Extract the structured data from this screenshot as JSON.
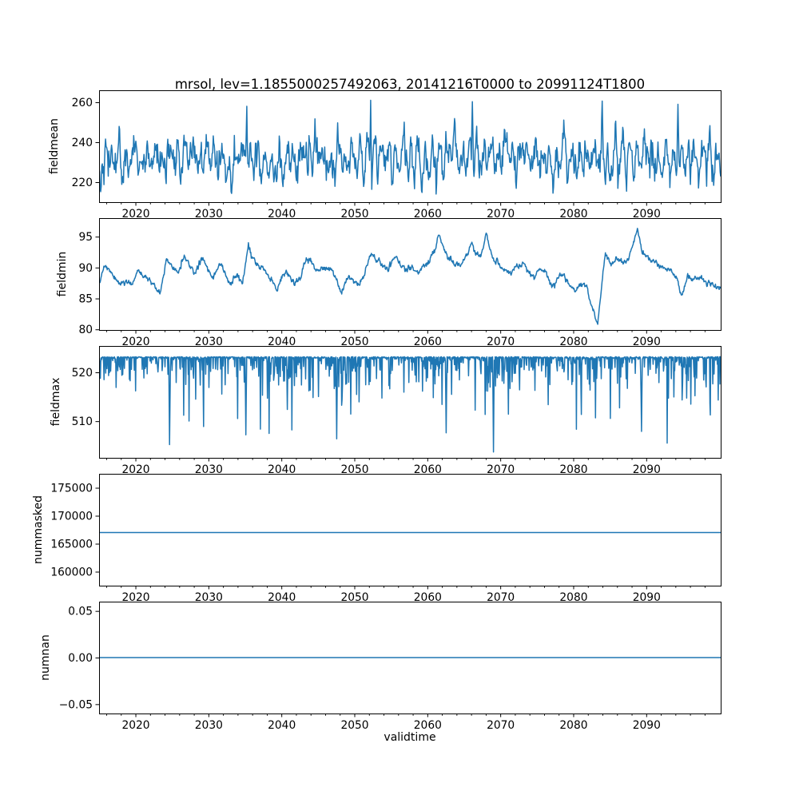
{
  "figure": {
    "background": "#ffffff",
    "text_color": "#000000"
  },
  "chart_data": {
    "type": "line",
    "title": "mrsol, lev=1.1855000257492063, 20141216T0000 to 20991124T1800",
    "xlabel": "validtime",
    "legend": "none",
    "grid": false,
    "line_color": "#1f77b4",
    "x_axis": {
      "xlim": [
        2014.96,
        2100.15
      ],
      "major_ticks": [
        2020,
        2030,
        2040,
        2050,
        2060,
        2070,
        2080,
        2090
      ],
      "major_tick_labels": [
        "2020",
        "2030",
        "2040",
        "2050",
        "2060",
        "2070",
        "2080",
        "2090"
      ],
      "minor_tick_start": 2016,
      "minor_tick_step": 2,
      "minor_tick_end": 2098
    },
    "panels": [
      {
        "ylabel": "fieldmean",
        "ylim": [
          210,
          266
        ],
        "ytick_values": [
          220,
          240,
          260
        ],
        "ytick_labels": [
          "220",
          "240",
          "260"
        ],
        "series": {
          "type": "noisy_seasonal",
          "seed": 42,
          "n": 1150,
          "mean": 231.5,
          "season_amp": 6.0,
          "season_freq": 1.0,
          "season_phase": 0.55,
          "ar": 0.55,
          "sigma": 4.3,
          "clamp": [
            213.5,
            261.0
          ],
          "spikes": [
            [
              2035.2,
              258.0
            ],
            [
              2052.2,
              261.0
            ],
            [
              2066.1,
              260.3
            ],
            [
              2083.9,
              260.6
            ],
            [
              2094.3,
              259.0
            ]
          ]
        }
      },
      {
        "ylabel": "fieldmin",
        "ylim": [
          79.9,
          98.0
        ],
        "ytick_values": [
          80,
          85,
          90,
          95
        ],
        "ytick_labels": [
          "80",
          "85",
          "90",
          "95"
        ],
        "series": {
          "type": "keypoints",
          "seed": 5,
          "n": 1300,
          "ar": 0.5,
          "sigma": 0.22,
          "clamp": [
            80.6,
            96.35
          ],
          "points": [
            [
              2015.0,
              87.8
            ],
            [
              2015.6,
              89.9
            ],
            [
              2016.3,
              89.6
            ],
            [
              2017.2,
              88.0
            ],
            [
              2018.0,
              87.3
            ],
            [
              2018.8,
              87.9
            ],
            [
              2019.5,
              87.0
            ],
            [
              2020.3,
              89.7
            ],
            [
              2021.2,
              88.6
            ],
            [
              2022.0,
              88.0
            ],
            [
              2022.8,
              86.6
            ],
            [
              2023.4,
              85.8
            ],
            [
              2024.2,
              91.6
            ],
            [
              2025.0,
              90.0
            ],
            [
              2025.8,
              89.4
            ],
            [
              2026.6,
              91.9
            ],
            [
              2027.4,
              90.4
            ],
            [
              2028.2,
              89.0
            ],
            [
              2029.0,
              91.4
            ],
            [
              2029.8,
              90.3
            ],
            [
              2030.6,
              88.4
            ],
            [
              2031.4,
              90.4
            ],
            [
              2032.2,
              89.5
            ],
            [
              2033.0,
              87.4
            ],
            [
              2033.8,
              88.7
            ],
            [
              2034.6,
              87.6
            ],
            [
              2035.4,
              93.5
            ],
            [
              2036.2,
              91.0
            ],
            [
              2037.0,
              90.2
            ],
            [
              2037.8,
              89.4
            ],
            [
              2038.6,
              87.8
            ],
            [
              2039.4,
              86.4
            ],
            [
              2040.2,
              89.5
            ],
            [
              2041.0,
              88.6
            ],
            [
              2041.8,
              87.4
            ],
            [
              2042.6,
              88.3
            ],
            [
              2043.4,
              91.6
            ],
            [
              2044.2,
              90.4
            ],
            [
              2045.0,
              89.3
            ],
            [
              2045.8,
              90.0
            ],
            [
              2046.6,
              89.8
            ],
            [
              2047.4,
              88.5
            ],
            [
              2048.2,
              85.6
            ],
            [
              2049.0,
              88.6
            ],
            [
              2049.8,
              87.9
            ],
            [
              2050.6,
              87.3
            ],
            [
              2051.4,
              89.0
            ],
            [
              2052.2,
              92.4
            ],
            [
              2053.0,
              91.2
            ],
            [
              2053.8,
              90.3
            ],
            [
              2054.6,
              89.6
            ],
            [
              2055.4,
              91.8
            ],
            [
              2056.2,
              90.6
            ],
            [
              2057.0,
              89.6
            ],
            [
              2057.8,
              90.2
            ],
            [
              2058.6,
              89.3
            ],
            [
              2059.4,
              90.5
            ],
            [
              2060.2,
              91.0
            ],
            [
              2061.0,
              93.0
            ],
            [
              2061.6,
              95.4
            ],
            [
              2062.2,
              93.2
            ],
            [
              2062.8,
              91.5
            ],
            [
              2063.6,
              90.8
            ],
            [
              2064.4,
              90.2
            ],
            [
              2065.2,
              91.5
            ],
            [
              2065.9,
              93.9
            ],
            [
              2066.5,
              92.4
            ],
            [
              2067.3,
              91.8
            ],
            [
              2068.0,
              95.6
            ],
            [
              2068.5,
              93.0
            ],
            [
              2069.0,
              91.3
            ],
            [
              2069.8,
              90.5
            ],
            [
              2070.6,
              89.4
            ],
            [
              2071.4,
              88.9
            ],
            [
              2072.2,
              90.4
            ],
            [
              2073.0,
              90.8
            ],
            [
              2073.8,
              89.3
            ],
            [
              2074.6,
              88.4
            ],
            [
              2075.4,
              89.8
            ],
            [
              2076.2,
              89.2
            ],
            [
              2077.0,
              87.0
            ],
            [
              2077.8,
              88.3
            ],
            [
              2078.6,
              88.8
            ],
            [
              2079.4,
              87.2
            ],
            [
              2080.2,
              86.0
            ],
            [
              2081.0,
              87.6
            ],
            [
              2081.8,
              86.9
            ],
            [
              2082.4,
              84.0
            ],
            [
              2083.3,
              80.7
            ],
            [
              2084.3,
              92.1
            ],
            [
              2085.1,
              90.6
            ],
            [
              2085.9,
              91.6
            ],
            [
              2086.7,
              90.9
            ],
            [
              2087.5,
              91.2
            ],
            [
              2088.8,
              96.3
            ],
            [
              2089.4,
              92.2
            ],
            [
              2090.2,
              91.6
            ],
            [
              2091.0,
              91.0
            ],
            [
              2091.8,
              90.4
            ],
            [
              2092.6,
              89.8
            ],
            [
              2093.4,
              89.4
            ],
            [
              2094.2,
              88.0
            ],
            [
              2094.8,
              85.1
            ],
            [
              2095.6,
              88.7
            ],
            [
              2096.4,
              88.2
            ],
            [
              2097.2,
              88.4
            ],
            [
              2098.0,
              87.8
            ],
            [
              2099.0,
              87.3
            ],
            [
              2099.9,
              86.8
            ]
          ]
        }
      },
      {
        "ylabel": "fieldmax",
        "ylim": [
          502.5,
          525.4
        ],
        "ytick_values": [
          510,
          520
        ],
        "ytick_labels": [
          "510",
          "520"
        ],
        "series": {
          "type": "ceiling_dips",
          "seed": 7,
          "n": 1500,
          "base": 523.2,
          "jitter": 0.25,
          "dip_prob": 0.34,
          "dip_prob_amp": 0.14,
          "dip_scale": 3.0,
          "dip_max": 17.5,
          "floor": 503.4,
          "deep_dips": [
            [
              2024.6,
              505.2
            ],
            [
              2035.1,
              507.2
            ],
            [
              2047.5,
              506.4
            ],
            [
              2062.5,
              507.6
            ],
            [
              2069.0,
              503.7
            ],
            [
              2089.3,
              507.9
            ]
          ]
        }
      },
      {
        "ylabel": "nummasked",
        "ylim": [
          157500,
          177500
        ],
        "ytick_values": [
          160000,
          165000,
          170000,
          175000
        ],
        "ytick_labels": [
          "160000",
          "165000",
          "170000",
          "175000"
        ],
        "series": {
          "type": "constant",
          "value": 167000
        }
      },
      {
        "ylabel": "numnan",
        "ylim": [
          -0.06,
          0.06
        ],
        "ytick_values": [
          -0.05,
          0.0,
          0.05
        ],
        "ytick_labels": [
          "−0.05",
          "0.00",
          "0.05"
        ],
        "series": {
          "type": "constant",
          "value": 0
        }
      }
    ]
  }
}
